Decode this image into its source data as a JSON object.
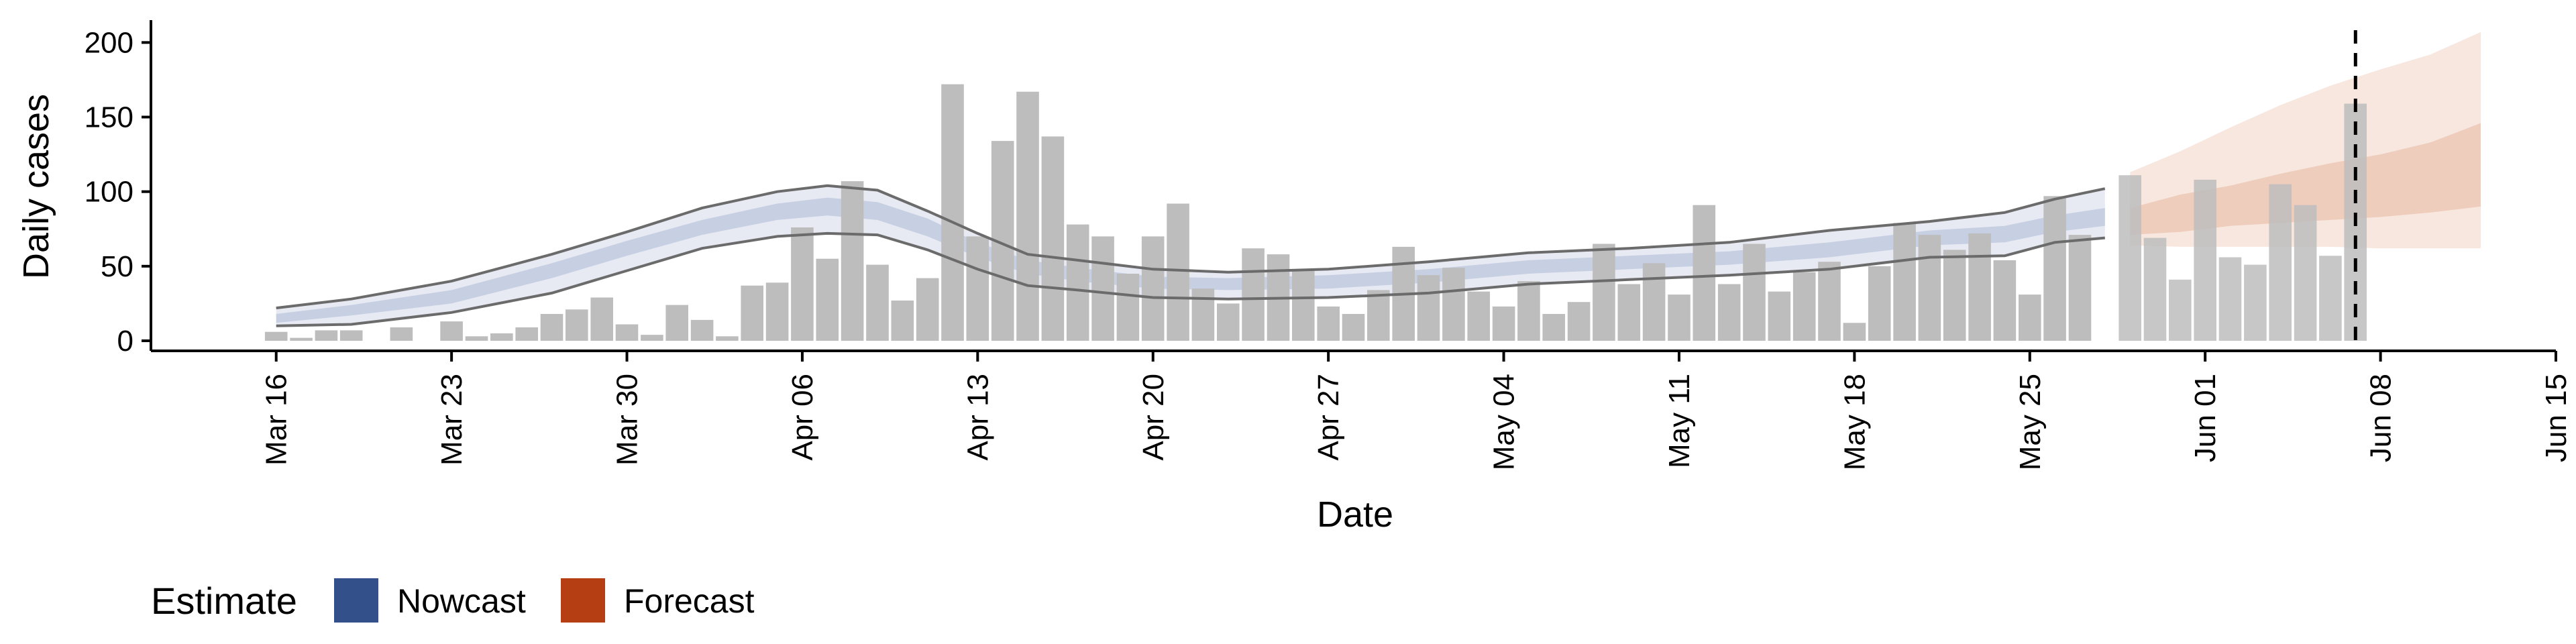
{
  "chart_data": {
    "type": "bar",
    "title": "",
    "xlabel": "Date",
    "ylabel": "Daily cases",
    "ylim": [
      0,
      215
    ],
    "y_ticks": [
      0,
      50,
      100,
      150,
      200
    ],
    "x_ticks": [
      "Mar 16",
      "Mar 23",
      "Mar 30",
      "Apr 06",
      "Apr 13",
      "Apr 20",
      "Apr 27",
      "May 04",
      "May 11",
      "May 18",
      "May 25",
      "Jun 01",
      "Jun 08",
      "Jun 15"
    ],
    "x_range_days": [
      -5,
      91
    ],
    "forecast_date_day": 83,
    "grid": false,
    "legend_position": "bottom-left",
    "legend": {
      "title": "Estimate",
      "entries": [
        {
          "name": "Nowcast",
          "color": "#34508a"
        },
        {
          "name": "Forecast",
          "color": "#b53f12"
        }
      ]
    },
    "colors": {
      "bars": "#bdbdbd",
      "nowcast_outer": "#e7eaf3",
      "nowcast_inner": "#c7cfe3",
      "forecast_outer": "#f8e7df",
      "forecast_inner": "#efcdbd",
      "ci_lines": "#6b6b6b"
    },
    "bars": [
      {
        "day": 0,
        "value": 6
      },
      {
        "day": 1,
        "value": 2
      },
      {
        "day": 2,
        "value": 7
      },
      {
        "day": 3,
        "value": 7
      },
      {
        "day": 5,
        "value": 9
      },
      {
        "day": 7,
        "value": 13
      },
      {
        "day": 8,
        "value": 3
      },
      {
        "day": 9,
        "value": 5
      },
      {
        "day": 10,
        "value": 9
      },
      {
        "day": 11,
        "value": 18
      },
      {
        "day": 12,
        "value": 21
      },
      {
        "day": 13,
        "value": 29
      },
      {
        "day": 14,
        "value": 11
      },
      {
        "day": 15,
        "value": 4
      },
      {
        "day": 16,
        "value": 24
      },
      {
        "day": 17,
        "value": 14
      },
      {
        "day": 18,
        "value": 3
      },
      {
        "day": 19,
        "value": 37
      },
      {
        "day": 20,
        "value": 39
      },
      {
        "day": 21,
        "value": 76
      },
      {
        "day": 22,
        "value": 55
      },
      {
        "day": 23,
        "value": 107
      },
      {
        "day": 24,
        "value": 51
      },
      {
        "day": 25,
        "value": 27
      },
      {
        "day": 26,
        "value": 42
      },
      {
        "day": 27,
        "value": 172
      },
      {
        "day": 28,
        "value": 70
      },
      {
        "day": 29,
        "value": 134
      },
      {
        "day": 30,
        "value": 167
      },
      {
        "day": 31,
        "value": 137
      },
      {
        "day": 32,
        "value": 78
      },
      {
        "day": 33,
        "value": 70
      },
      {
        "day": 34,
        "value": 45
      },
      {
        "day": 35,
        "value": 70
      },
      {
        "day": 36,
        "value": 92
      },
      {
        "day": 37,
        "value": 35
      },
      {
        "day": 38,
        "value": 25
      },
      {
        "day": 39,
        "value": 62
      },
      {
        "day": 40,
        "value": 58
      },
      {
        "day": 41,
        "value": 47
      },
      {
        "day": 42,
        "value": 23
      },
      {
        "day": 43,
        "value": 18
      },
      {
        "day": 44,
        "value": 34
      },
      {
        "day": 45,
        "value": 63
      },
      {
        "day": 46,
        "value": 44
      },
      {
        "day": 47,
        "value": 49
      },
      {
        "day": 48,
        "value": 33
      },
      {
        "day": 49,
        "value": 23
      },
      {
        "day": 50,
        "value": 40
      },
      {
        "day": 51,
        "value": 18
      },
      {
        "day": 52,
        "value": 26
      },
      {
        "day": 53,
        "value": 65
      },
      {
        "day": 54,
        "value": 38
      },
      {
        "day": 55,
        "value": 52
      },
      {
        "day": 56,
        "value": 31
      },
      {
        "day": 57,
        "value": 91
      },
      {
        "day": 58,
        "value": 38
      },
      {
        "day": 59,
        "value": 65
      },
      {
        "day": 60,
        "value": 33
      },
      {
        "day": 61,
        "value": 46
      },
      {
        "day": 62,
        "value": 53
      },
      {
        "day": 63,
        "value": 12
      },
      {
        "day": 64,
        "value": 50
      },
      {
        "day": 65,
        "value": 79
      },
      {
        "day": 66,
        "value": 71
      },
      {
        "day": 67,
        "value": 61
      },
      {
        "day": 68,
        "value": 72
      },
      {
        "day": 69,
        "value": 54
      },
      {
        "day": 70,
        "value": 31
      },
      {
        "day": 71,
        "value": 97
      },
      {
        "day": 72,
        "value": 71
      },
      {
        "day": 74,
        "value": 111
      },
      {
        "day": 75,
        "value": 69
      },
      {
        "day": 76,
        "value": 41
      },
      {
        "day": 77,
        "value": 108
      },
      {
        "day": 78,
        "value": 56
      },
      {
        "day": 79,
        "value": 51
      },
      {
        "day": 80,
        "value": 105
      },
      {
        "day": 81,
        "value": 91
      },
      {
        "day": 82,
        "value": 57
      },
      {
        "day": 83,
        "value": 159
      }
    ],
    "nowcast": [
      {
        "day": 0,
        "lo": 10,
        "lo50": 12,
        "hi50": 18,
        "hi": 22
      },
      {
        "day": 3,
        "lo": 11,
        "lo50": 17,
        "hi50": 24,
        "hi": 28
      },
      {
        "day": 7,
        "lo": 19,
        "lo50": 25,
        "hi50": 34,
        "hi": 40
      },
      {
        "day": 11,
        "lo": 32,
        "lo50": 42,
        "hi50": 52,
        "hi": 58
      },
      {
        "day": 14,
        "lo": 47,
        "lo50": 57,
        "hi50": 67,
        "hi": 73
      },
      {
        "day": 17,
        "lo": 62,
        "lo50": 71,
        "hi50": 81,
        "hi": 89
      },
      {
        "day": 20,
        "lo": 70,
        "lo50": 81,
        "hi50": 92,
        "hi": 100
      },
      {
        "day": 22,
        "lo": 72,
        "lo50": 84,
        "hi50": 96,
        "hi": 104
      },
      {
        "day": 24,
        "lo": 71,
        "lo50": 81,
        "hi50": 93,
        "hi": 101
      },
      {
        "day": 26,
        "lo": 61,
        "lo50": 70,
        "hi50": 82,
        "hi": 87
      },
      {
        "day": 28,
        "lo": 48,
        "lo50": 56,
        "hi50": 66,
        "hi": 72
      },
      {
        "day": 30,
        "lo": 37,
        "lo50": 45,
        "hi50": 54,
        "hi": 58
      },
      {
        "day": 32,
        "lo": 34,
        "lo50": 40,
        "hi50": 49,
        "hi": 54
      },
      {
        "day": 35,
        "lo": 29,
        "lo50": 35,
        "hi50": 43,
        "hi": 48
      },
      {
        "day": 38,
        "lo": 28,
        "lo50": 34,
        "hi50": 42,
        "hi": 46
      },
      {
        "day": 42,
        "lo": 29,
        "lo50": 35,
        "hi50": 44,
        "hi": 48
      },
      {
        "day": 46,
        "lo": 32,
        "lo50": 39,
        "hi50": 48,
        "hi": 53
      },
      {
        "day": 50,
        "lo": 38,
        "lo50": 45,
        "hi50": 54,
        "hi": 59
      },
      {
        "day": 54,
        "lo": 41,
        "lo50": 48,
        "hi50": 57,
        "hi": 62
      },
      {
        "day": 58,
        "lo": 44,
        "lo50": 51,
        "hi50": 60,
        "hi": 66
      },
      {
        "day": 62,
        "lo": 48,
        "lo50": 56,
        "hi50": 66,
        "hi": 74
      },
      {
        "day": 66,
        "lo": 56,
        "lo50": 64,
        "hi50": 74,
        "hi": 80
      },
      {
        "day": 69,
        "lo": 57,
        "lo50": 66,
        "hi50": 77,
        "hi": 86
      },
      {
        "day": 71,
        "lo": 66,
        "lo50": 73,
        "hi50": 84,
        "hi": 95
      },
      {
        "day": 73,
        "lo": 69,
        "lo50": 77,
        "hi50": 89,
        "hi": 102
      }
    ],
    "forecast": [
      {
        "day": 74,
        "lo": 64,
        "lo50": 71,
        "hi50": 89,
        "hi": 113
      },
      {
        "day": 76,
        "lo": 63,
        "lo50": 73,
        "hi50": 98,
        "hi": 127
      },
      {
        "day": 78,
        "lo": 63,
        "lo50": 77,
        "hi50": 104,
        "hi": 143
      },
      {
        "day": 80,
        "lo": 63,
        "lo50": 79,
        "hi50": 112,
        "hi": 158
      },
      {
        "day": 82,
        "lo": 63,
        "lo50": 81,
        "hi50": 119,
        "hi": 171
      },
      {
        "day": 84,
        "lo": 62,
        "lo50": 83,
        "hi50": 125,
        "hi": 182
      },
      {
        "day": 86,
        "lo": 62,
        "lo50": 86,
        "hi50": 133,
        "hi": 192
      },
      {
        "day": 88,
        "lo": 62,
        "lo50": 90,
        "hi50": 146,
        "hi": 207
      }
    ]
  }
}
